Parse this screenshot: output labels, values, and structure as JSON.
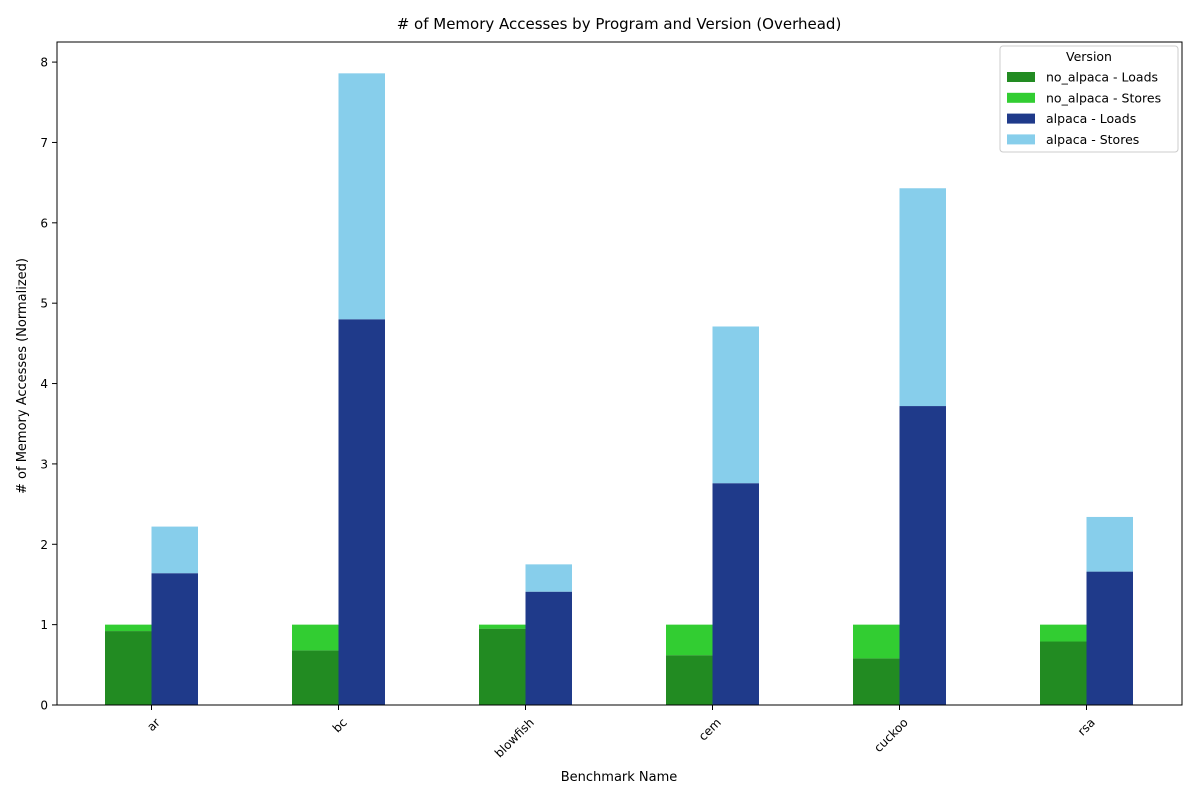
{
  "chart_data": {
    "type": "bar",
    "stacked": true,
    "grouped": true,
    "title": "# of Memory Accesses by Program and Version (Overhead)",
    "xlabel": "Benchmark Name",
    "ylabel": "# of Memory Accesses (Normalized)",
    "categories": [
      "ar",
      "bc",
      "blowfish",
      "cem",
      "cuckoo",
      "rsa"
    ],
    "ylim": [
      0,
      8.25
    ],
    "yticks": [
      0,
      1,
      2,
      3,
      4,
      5,
      6,
      7,
      8
    ],
    "x_tick_rotation": 45,
    "legend": {
      "title": "Version",
      "position": "top-right"
    },
    "groups": [
      {
        "version": "no_alpaca",
        "segments": [
          {
            "name": "no_alpaca - Loads",
            "color": "#228b22",
            "values": [
              0.92,
              0.68,
              0.95,
              0.62,
              0.58,
              0.79
            ]
          },
          {
            "name": "no_alpaca - Stores",
            "color": "#32cd32",
            "values": [
              0.08,
              0.32,
              0.05,
              0.38,
              0.42,
              0.21
            ]
          }
        ]
      },
      {
        "version": "alpaca",
        "segments": [
          {
            "name": "alpaca - Loads",
            "color": "#1f3a8a",
            "values": [
              1.64,
              4.8,
              1.41,
              2.76,
              3.72,
              1.66
            ]
          },
          {
            "name": "alpaca - Stores",
            "color": "#87ceeb",
            "values": [
              0.58,
              3.06,
              0.34,
              1.95,
              2.71,
              0.68
            ]
          }
        ]
      }
    ]
  }
}
